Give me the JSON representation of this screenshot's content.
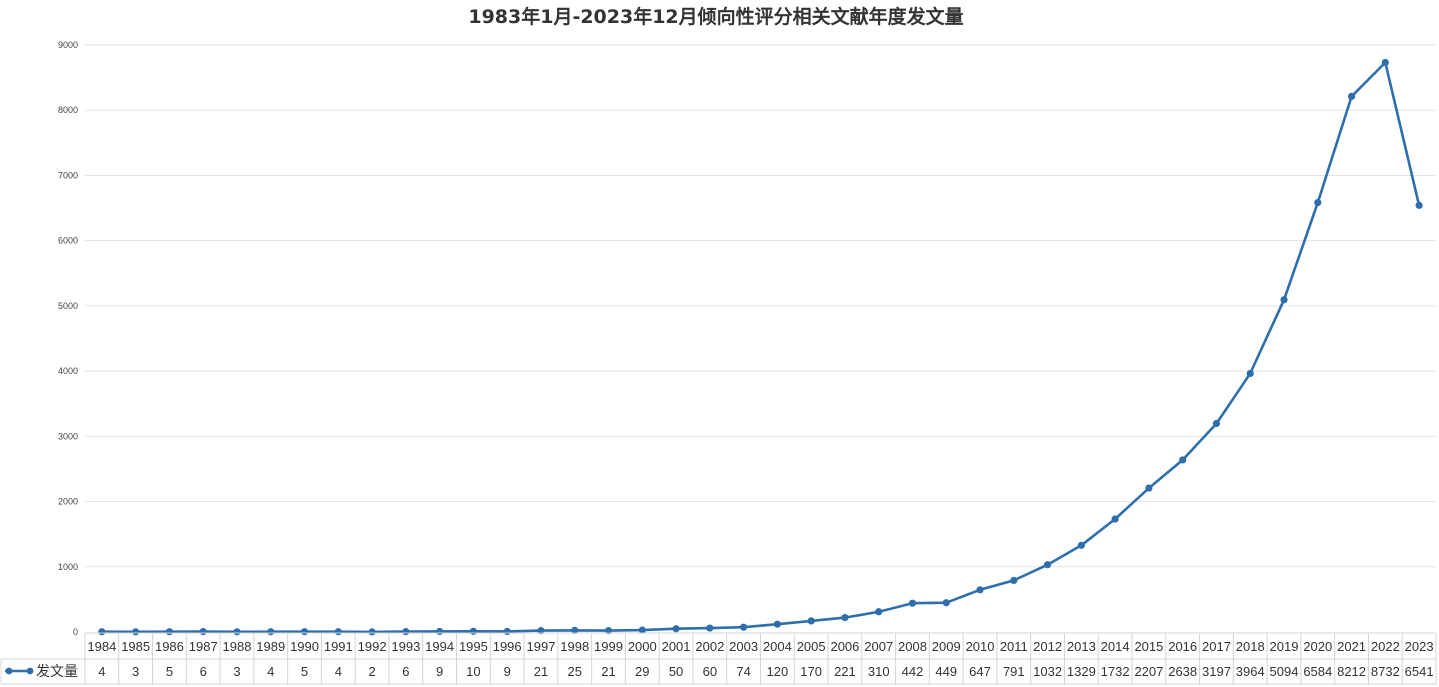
{
  "chart_data": {
    "type": "line",
    "title": "1983年1月-2023年12月倾向性评分相关文献年度发文量",
    "xlabel": "",
    "ylabel": "",
    "ylim": [
      0,
      9000
    ],
    "yticks": [
      0,
      1000,
      2000,
      3000,
      4000,
      5000,
      6000,
      7000,
      8000,
      9000
    ],
    "grid": true,
    "legend": "bottom-left (data table)",
    "data_table": true,
    "categories": [
      "1984",
      "1985",
      "1986",
      "1987",
      "1988",
      "1989",
      "1990",
      "1991",
      "1992",
      "1993",
      "1994",
      "1995",
      "1996",
      "1997",
      "1998",
      "1999",
      "2000",
      "2001",
      "2002",
      "2003",
      "2004",
      "2005",
      "2006",
      "2007",
      "2008",
      "2009",
      "2010",
      "2011",
      "2012",
      "2013",
      "2014",
      "2015",
      "2016",
      "2017",
      "2018",
      "2019",
      "2020",
      "2021",
      "2022",
      "2023"
    ],
    "series": [
      {
        "name": "发文量",
        "color": "#2e6ead",
        "values": [
          4,
          3,
          5,
          6,
          3,
          4,
          5,
          4,
          2,
          6,
          9,
          10,
          9,
          21,
          25,
          21,
          29,
          50,
          60,
          74,
          120,
          170,
          221,
          310,
          442,
          449,
          647,
          791,
          1032,
          1329,
          1732,
          2207,
          2638,
          3197,
          3964,
          5094,
          6584,
          8212,
          8732,
          6541
        ]
      }
    ]
  }
}
